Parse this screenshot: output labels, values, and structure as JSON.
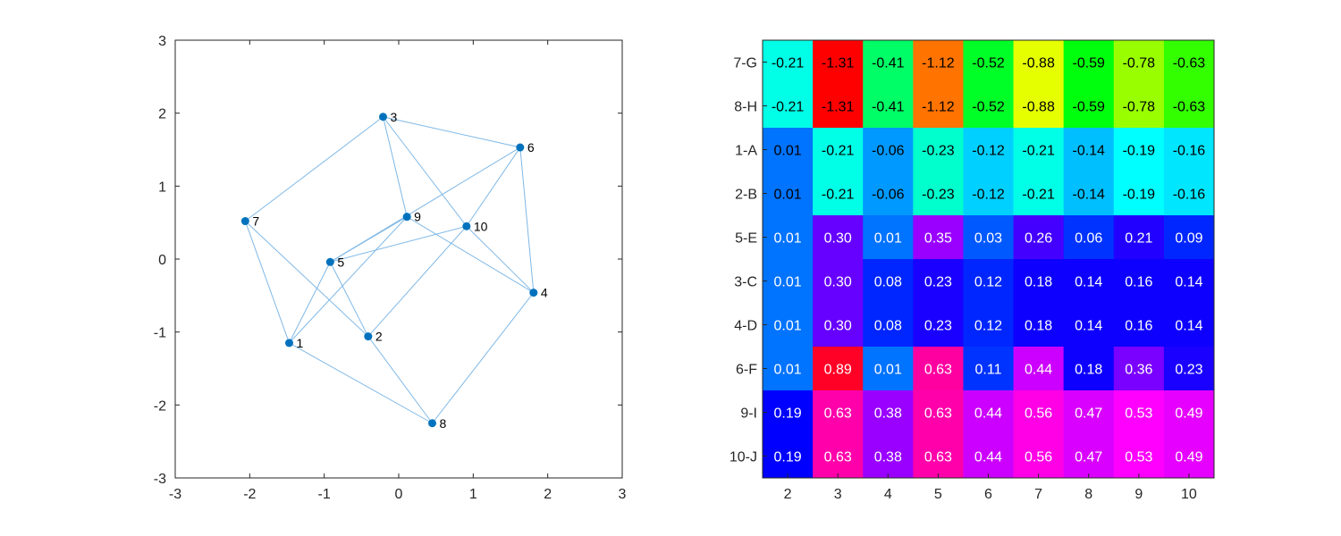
{
  "chart_data": [
    {
      "type": "scatter",
      "subtype": "graph",
      "xlim": [
        -3,
        3
      ],
      "ylim": [
        -3,
        3
      ],
      "xticks": [
        "-3",
        "-2",
        "-1",
        "0",
        "1",
        "2",
        "3"
      ],
      "yticks": [
        "-3",
        "-2",
        "-1",
        "0",
        "1",
        "2",
        "3"
      ],
      "grid": false,
      "node_color": "#0072BD",
      "edge_color": "#7FB8E6",
      "nodes": [
        {
          "id": "1",
          "x": -1.47,
          "y": -1.15
        },
        {
          "id": "2",
          "x": -0.41,
          "y": -1.06
        },
        {
          "id": "3",
          "x": -0.21,
          "y": 1.95
        },
        {
          "id": "4",
          "x": 1.81,
          "y": -0.46
        },
        {
          "id": "5",
          "x": -0.92,
          "y": -0.04
        },
        {
          "id": "6",
          "x": 1.63,
          "y": 1.53
        },
        {
          "id": "7",
          "x": -2.06,
          "y": 0.52
        },
        {
          "id": "8",
          "x": 0.45,
          "y": -2.25
        },
        {
          "id": "9",
          "x": 0.11,
          "y": 0.58
        },
        {
          "id": "10",
          "x": 0.91,
          "y": 0.45
        }
      ],
      "edges": [
        [
          "7",
          "3"
        ],
        [
          "7",
          "1"
        ],
        [
          "7",
          "2"
        ],
        [
          "3",
          "6"
        ],
        [
          "3",
          "9"
        ],
        [
          "3",
          "10"
        ],
        [
          "6",
          "5"
        ],
        [
          "6",
          "10"
        ],
        [
          "6",
          "4"
        ],
        [
          "9",
          "5"
        ],
        [
          "9",
          "1"
        ],
        [
          "9",
          "4"
        ],
        [
          "5",
          "10"
        ],
        [
          "5",
          "1"
        ],
        [
          "5",
          "2"
        ],
        [
          "10",
          "2"
        ],
        [
          "10",
          "4"
        ],
        [
          "1",
          "8"
        ],
        [
          "2",
          "8"
        ],
        [
          "4",
          "8"
        ]
      ]
    },
    {
      "type": "heatmap",
      "x_labels": [
        "2",
        "3",
        "4",
        "5",
        "6",
        "7",
        "8",
        "9",
        "10"
      ],
      "y_labels": [
        "7-G",
        "8-H",
        "1-A",
        "2-B",
        "5-E",
        "3-C",
        "4-D",
        "6-F",
        "9-I",
        "10-J"
      ],
      "colormap": "hsv",
      "values": [
        [
          -0.21,
          -1.31,
          -0.41,
          -1.12,
          -0.52,
          -0.88,
          -0.59,
          -0.78,
          -0.63
        ],
        [
          -0.21,
          -1.31,
          -0.41,
          -1.12,
          -0.52,
          -0.88,
          -0.59,
          -0.78,
          -0.63
        ],
        [
          0.01,
          -0.21,
          -0.06,
          -0.23,
          -0.12,
          -0.21,
          -0.14,
          -0.19,
          -0.16
        ],
        [
          0.01,
          -0.21,
          -0.06,
          -0.23,
          -0.12,
          -0.21,
          -0.14,
          -0.19,
          -0.16
        ],
        [
          0.01,
          0.3,
          0.01,
          0.35,
          0.03,
          0.26,
          0.06,
          0.21,
          0.09
        ],
        [
          0.01,
          0.3,
          0.08,
          0.23,
          0.12,
          0.18,
          0.14,
          0.16,
          0.14
        ],
        [
          0.01,
          0.3,
          0.08,
          0.23,
          0.12,
          0.18,
          0.14,
          0.16,
          0.14
        ],
        [
          0.01,
          0.89,
          0.01,
          0.63,
          0.11,
          0.44,
          0.18,
          0.36,
          0.23
        ],
        [
          0.19,
          0.63,
          0.38,
          0.63,
          0.44,
          0.56,
          0.47,
          0.53,
          0.49
        ],
        [
          0.19,
          0.63,
          0.38,
          0.63,
          0.44,
          0.56,
          0.47,
          0.53,
          0.49
        ]
      ],
      "cell_colors": [
        [
          "#00FFE6",
          "#FF0000",
          "#00FF66",
          "#FF7300",
          "#00FF26",
          "#E6FF00",
          "#00FF0D",
          "#99FF00",
          "#33FF00"
        ],
        [
          "#00FFE6",
          "#FF0000",
          "#00FF66",
          "#FF7300",
          "#00FF26",
          "#E6FF00",
          "#00FF0D",
          "#99FF00",
          "#33FF00"
        ],
        [
          "#0073FF",
          "#00FFE6",
          "#0099FF",
          "#00FFCC",
          "#00D0FF",
          "#00FFE6",
          "#00BFFF",
          "#00FFFF",
          "#00E6FF"
        ],
        [
          "#0073FF",
          "#00FFE6",
          "#0099FF",
          "#00FFCC",
          "#00D0FF",
          "#00FFE6",
          "#00BFFF",
          "#00FFFF",
          "#00E6FF"
        ],
        [
          "#0073FF",
          "#6600FF",
          "#0073FF",
          "#9900FF",
          "#0059FF",
          "#4400FF",
          "#0033FF",
          "#2200FF",
          "#0026FF"
        ],
        [
          "#0073FF",
          "#6600FF",
          "#0026FF",
          "#1A00FF",
          "#0026FF",
          "#0D00FF",
          "#0D00FF",
          "#0D00FF",
          "#0D00FF"
        ],
        [
          "#0073FF",
          "#6600FF",
          "#0026FF",
          "#1A00FF",
          "#0026FF",
          "#0D00FF",
          "#0D00FF",
          "#0D00FF",
          "#0D00FF"
        ],
        [
          "#0073FF",
          "#FF0026",
          "#0073FF",
          "#FF00A0",
          "#0033FF",
          "#CC00FF",
          "#0D00FF",
          "#7A00FF",
          "#1A00FF"
        ],
        [
          "#0000FF",
          "#FF00AA",
          "#9900FF",
          "#FF00AA",
          "#CC00FF",
          "#FF00E6",
          "#D900FF",
          "#FF00FF",
          "#E600FF"
        ],
        [
          "#0000FF",
          "#FF00AA",
          "#9900FF",
          "#FF00AA",
          "#CC00FF",
          "#FF00E6",
          "#D900FF",
          "#FF00FF",
          "#E600FF"
        ]
      ],
      "text_colors": [
        "#000000",
        "#000000",
        "#000000",
        "#000000",
        "#ffffff",
        "#ffffff",
        "#ffffff",
        "#ffffff",
        "#ffffff",
        "#ffffff"
      ]
    }
  ]
}
